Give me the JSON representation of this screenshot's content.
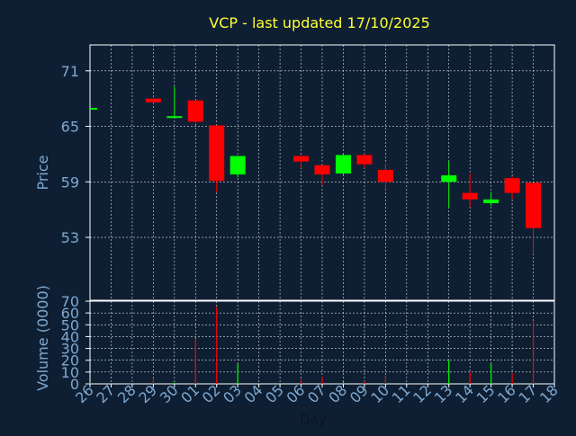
{
  "title": "VCP - last updated 17/10/2025",
  "colors": {
    "background": "#0f1f33",
    "frame": "#ffffff",
    "grid": "#ffffff",
    "title": "#ffff33",
    "tick_text": "#7ea8d0",
    "axis_label": "#7ea8d0",
    "up": "#00ff00",
    "down": "#ff0000"
  },
  "chart_data": [
    {
      "type": "candlestick",
      "ylabel": "Price",
      "ylim": [
        46.2,
        73.8
      ],
      "yticks": [
        53,
        59,
        65,
        71
      ],
      "grid": true,
      "categories": [
        "26",
        "27",
        "28",
        "29",
        "30",
        "01",
        "02",
        "03",
        "04",
        "05",
        "06",
        "07",
        "08",
        "09",
        "10",
        "11",
        "12",
        "13",
        "14",
        "15",
        "16",
        "17",
        "18"
      ],
      "candles": [
        {
          "day": "26",
          "open": 67.0,
          "high": 67.0,
          "low": 67.0,
          "close": 67.0
        },
        {
          "day": "29",
          "open": 68.0,
          "high": 68.0,
          "low": 67.5,
          "close": 67.6
        },
        {
          "day": "30",
          "open": 66.0,
          "high": 69.3,
          "low": 66.0,
          "close": 66.1
        },
        {
          "day": "01",
          "open": 67.8,
          "high": 67.8,
          "low": 65.3,
          "close": 65.5
        },
        {
          "day": "02",
          "open": 65.1,
          "high": 65.1,
          "low": 57.9,
          "close": 59.1
        },
        {
          "day": "03",
          "open": 59.8,
          "high": 61.8,
          "low": 59.5,
          "close": 61.8
        },
        {
          "day": "06",
          "open": 61.8,
          "high": 61.8,
          "low": 60.5,
          "close": 61.2
        },
        {
          "day": "07",
          "open": 60.8,
          "high": 60.8,
          "low": 58.6,
          "close": 59.8
        },
        {
          "day": "08",
          "open": 59.9,
          "high": 62.0,
          "low": 59.8,
          "close": 61.9
        },
        {
          "day": "09",
          "open": 61.9,
          "high": 62.0,
          "low": 60.5,
          "close": 60.9
        },
        {
          "day": "10",
          "open": 60.3,
          "high": 61.0,
          "low": 58.2,
          "close": 59.0
        },
        {
          "day": "13",
          "open": 59.0,
          "high": 61.2,
          "low": 56.2,
          "close": 59.7
        },
        {
          "day": "14",
          "open": 57.8,
          "high": 59.9,
          "low": 56.3,
          "close": 57.1
        },
        {
          "day": "15",
          "open": 56.7,
          "high": 57.9,
          "low": 56.4,
          "close": 57.1
        },
        {
          "day": "16",
          "open": 59.4,
          "high": 59.6,
          "low": 57.1,
          "close": 57.8
        },
        {
          "day": "17",
          "open": 58.9,
          "high": 58.9,
          "low": 51.2,
          "close": 54.0
        }
      ]
    },
    {
      "type": "bar",
      "ylabel": "Volume (0000)",
      "xlabel": "Day",
      "ylim": [
        0,
        70
      ],
      "yticks": [
        0,
        10,
        20,
        30,
        40,
        50,
        60,
        70
      ],
      "grid": true,
      "categories": [
        "26",
        "27",
        "28",
        "29",
        "30",
        "01",
        "02",
        "03",
        "04",
        "05",
        "06",
        "07",
        "08",
        "09",
        "10",
        "11",
        "12",
        "13",
        "14",
        "15",
        "16",
        "17",
        "18"
      ],
      "bars": [
        {
          "day": "26",
          "value": 0.5,
          "direction": "up"
        },
        {
          "day": "29",
          "value": 5,
          "direction": "down"
        },
        {
          "day": "30",
          "value": 1,
          "direction": "up"
        },
        {
          "day": "01",
          "value": 38,
          "direction": "down"
        },
        {
          "day": "02",
          "value": 65,
          "direction": "down"
        },
        {
          "day": "03",
          "value": 17,
          "direction": "up"
        },
        {
          "day": "06",
          "value": 4,
          "direction": "down"
        },
        {
          "day": "07",
          "value": 6,
          "direction": "down"
        },
        {
          "day": "08",
          "value": 3,
          "direction": "up"
        },
        {
          "day": "09",
          "value": 2,
          "direction": "down"
        },
        {
          "day": "10",
          "value": 7,
          "direction": "down"
        },
        {
          "day": "13",
          "value": 20,
          "direction": "up"
        },
        {
          "day": "14",
          "value": 10,
          "direction": "down"
        },
        {
          "day": "15",
          "value": 17,
          "direction": "up"
        },
        {
          "day": "16",
          "value": 9,
          "direction": "down"
        },
        {
          "day": "17",
          "value": 53,
          "direction": "down"
        }
      ]
    }
  ]
}
